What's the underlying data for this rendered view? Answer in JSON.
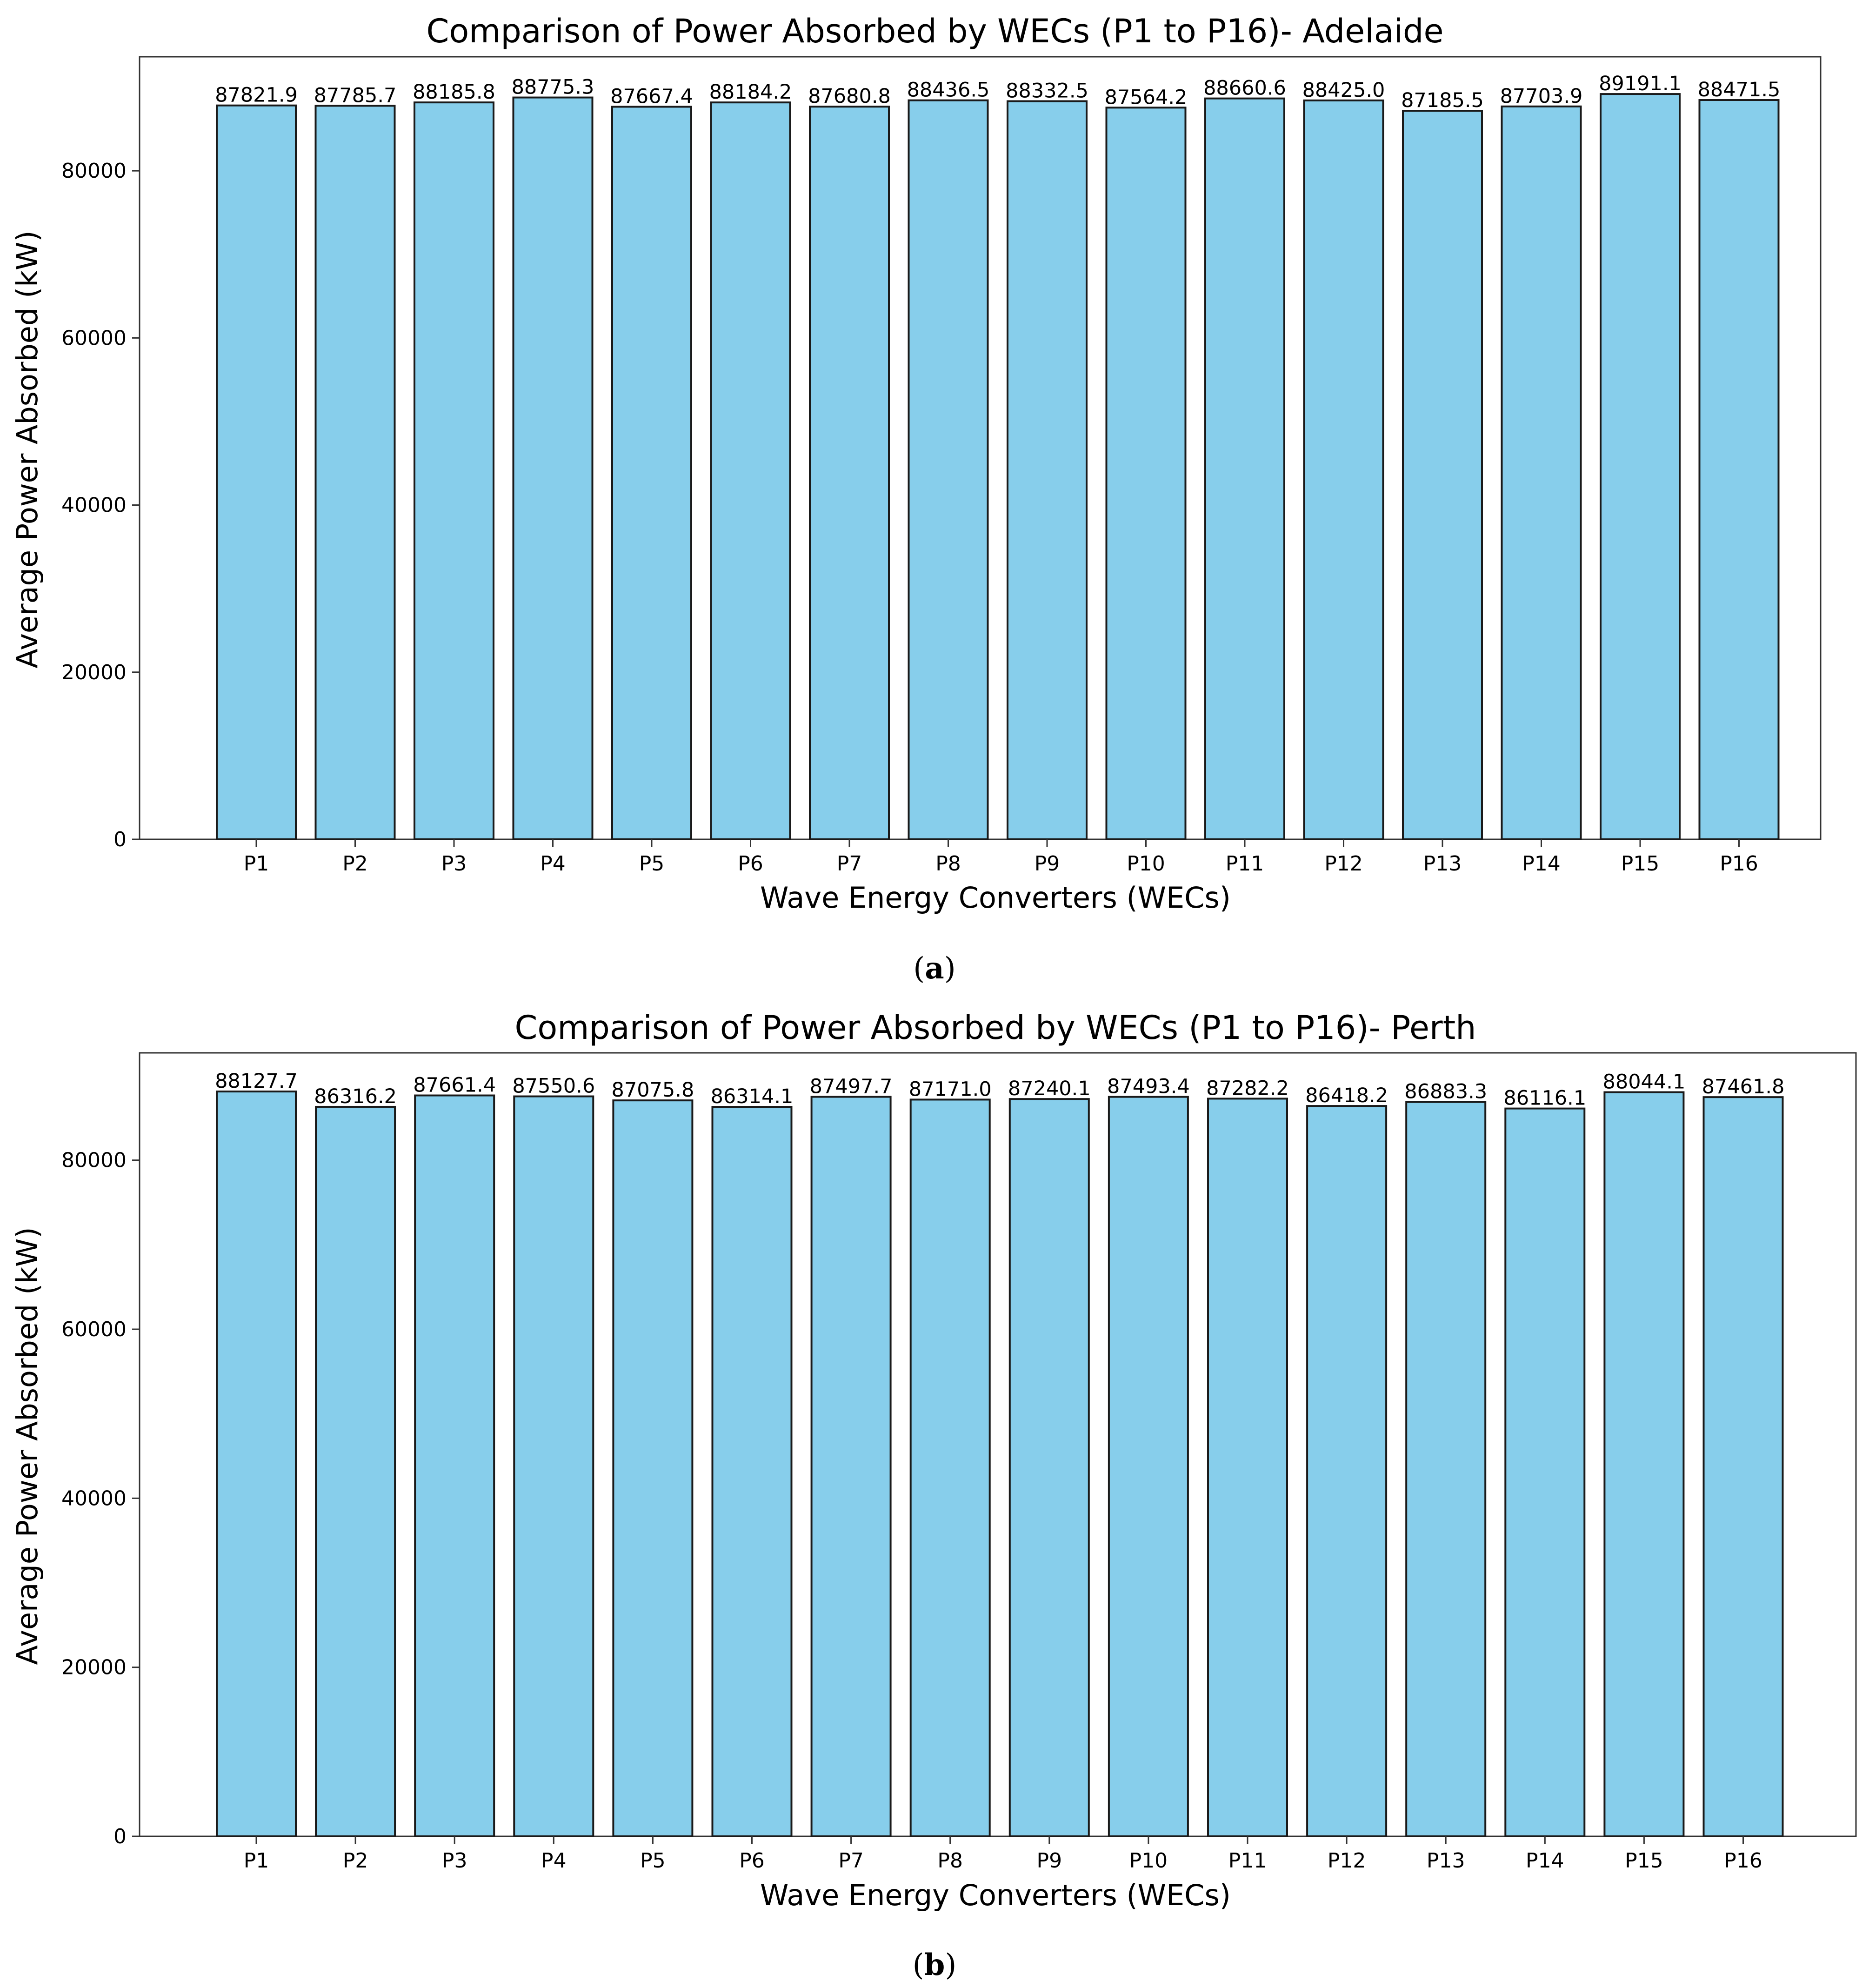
{
  "chart_data": [
    {
      "type": "bar",
      "title": "Comparison of Power Absorbed by WECs (P1 to P16)- Adelaide",
      "xlabel": "Wave Energy Converters (WECs)",
      "ylabel": "Average Power Absorbed (kW)",
      "categories": [
        "P1",
        "P2",
        "P3",
        "P4",
        "P5",
        "P6",
        "P7",
        "P8",
        "P9",
        "P10",
        "P11",
        "P12",
        "P13",
        "P14",
        "P15",
        "P16"
      ],
      "values": [
        87821.9,
        87785.7,
        88185.8,
        88775.3,
        87667.4,
        88184.2,
        87680.8,
        88436.5,
        88332.5,
        87564.2,
        88660.6,
        88425.0,
        87185.5,
        87703.9,
        89191.1,
        88471.5
      ],
      "data_labels": [
        "87821.9",
        "87785.7",
        "88185.8",
        "88775.3",
        "87667.4",
        "88184.2",
        "87680.8",
        "88436.5",
        "88332.5",
        "87564.2",
        "88660.6",
        "88425.0",
        "87185.5",
        "87703.9",
        "89191.1",
        "88471.5"
      ],
      "ylim": [
        0,
        93650
      ],
      "yticks": [
        0,
        20000,
        40000,
        60000,
        80000
      ],
      "ytick_labels": [
        "0",
        "20000",
        "40000",
        "60000",
        "80000"
      ],
      "grid": false,
      "bar_color": "#87ceeb",
      "edge_color": "#1a1a1a",
      "caption_open": "(",
      "caption_letter": "a",
      "caption_close": ")"
    },
    {
      "type": "bar",
      "title": "Comparison of Power Absorbed by WECs (P1 to P16)- Perth",
      "xlabel": "Wave Energy Converters (WECs)",
      "ylabel": "Average Power Absorbed (kW)",
      "categories": [
        "P1",
        "P2",
        "P3",
        "P4",
        "P5",
        "P6",
        "P7",
        "P8",
        "P9",
        "P10",
        "P11",
        "P12",
        "P13",
        "P14",
        "P15",
        "P16"
      ],
      "values": [
        88127.7,
        86316.2,
        87661.4,
        87550.6,
        87075.8,
        86314.1,
        87497.7,
        87171.0,
        87240.1,
        87493.4,
        87282.2,
        86418.2,
        86883.3,
        86116.1,
        88044.1,
        87461.8
      ],
      "data_labels": [
        "88127.7",
        "86316.2",
        "87661.4",
        "87550.6",
        "87075.8",
        "86314.1",
        "87497.7",
        "87171.0",
        "87240.1",
        "87493.4",
        "87282.2",
        "86418.2",
        "86883.3",
        "86116.1",
        "88044.1",
        "87461.8"
      ],
      "ylim": [
        0,
        92700
      ],
      "yticks": [
        0,
        20000,
        40000,
        60000,
        80000
      ],
      "ytick_labels": [
        "0",
        "20000",
        "40000",
        "60000",
        "80000"
      ],
      "grid": false,
      "bar_color": "#87ceeb",
      "edge_color": "#1a1a1a",
      "caption_open": "(",
      "caption_letter": "b",
      "caption_close": ")"
    }
  ]
}
